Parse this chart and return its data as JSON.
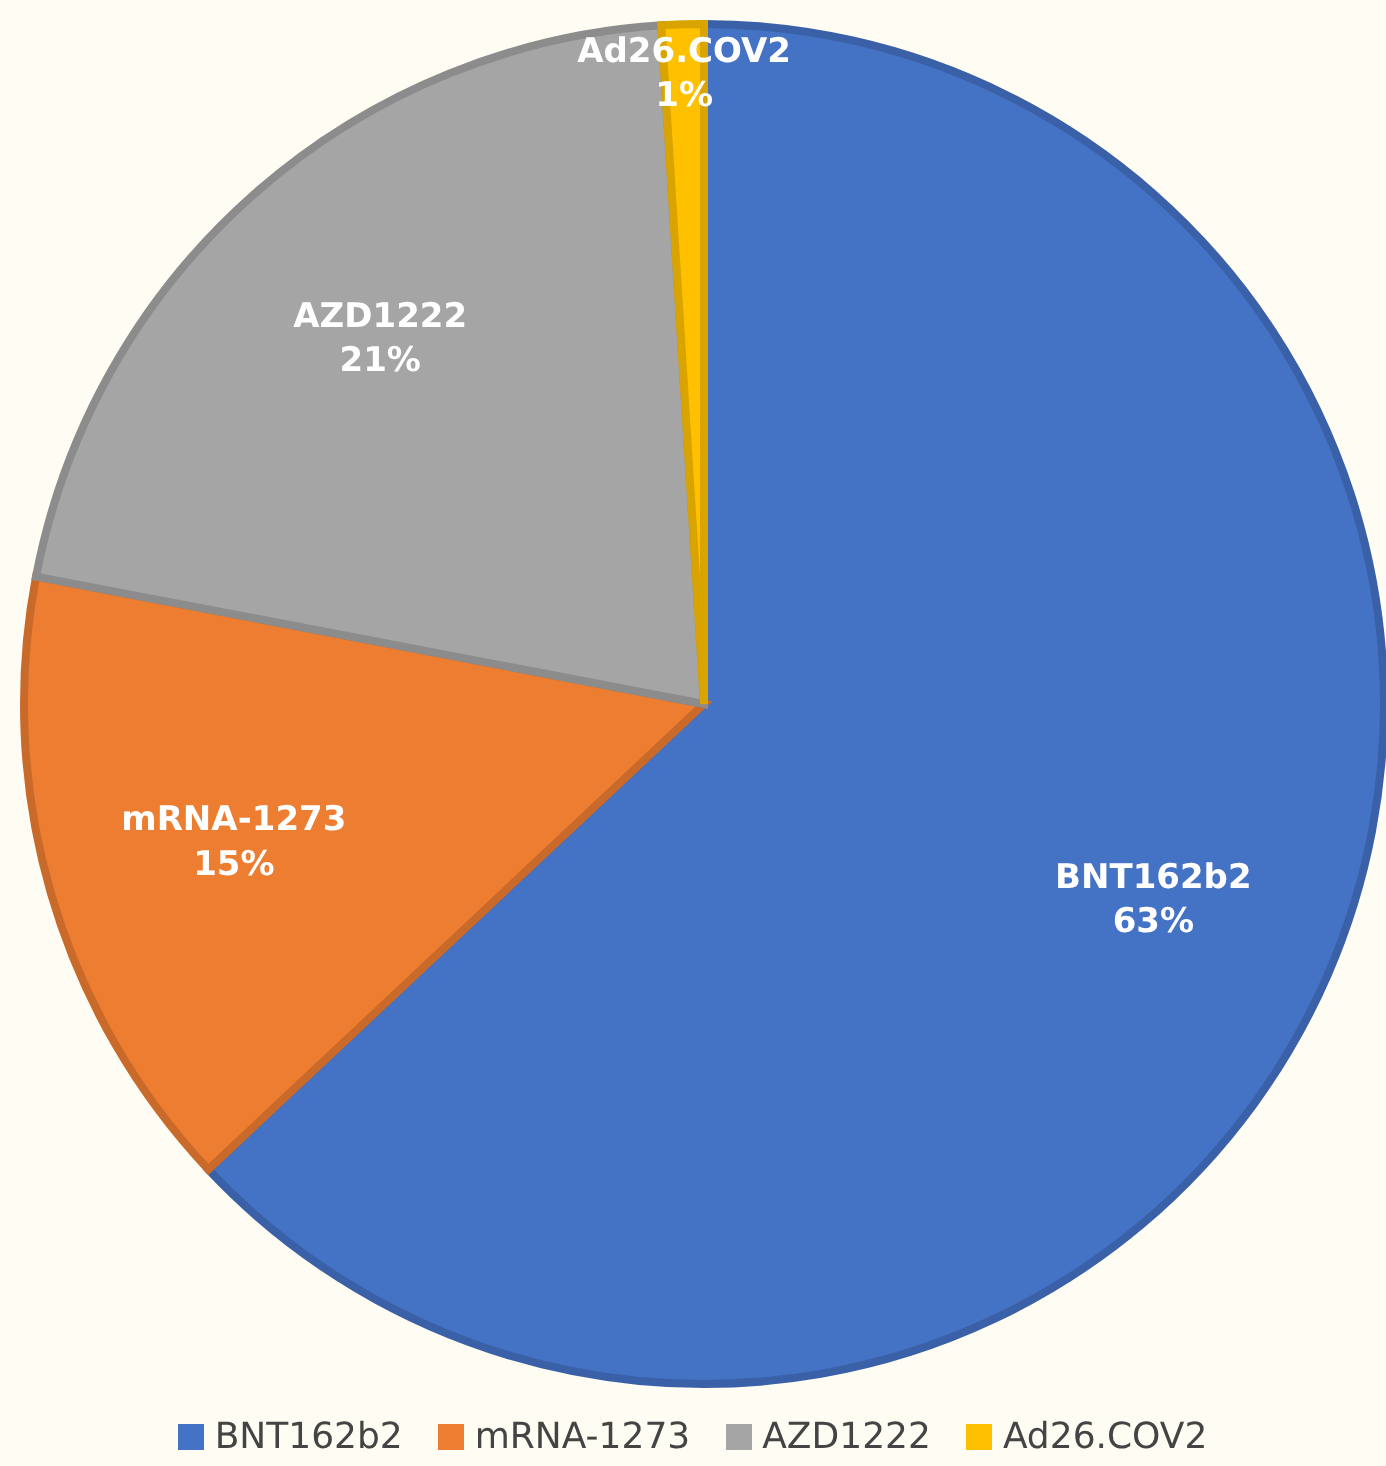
{
  "chart_data": {
    "type": "pie",
    "categories": [
      "BNT162b2",
      "mRNA-1273",
      "AZD1222",
      "Ad26.COV2"
    ],
    "values": [
      63,
      15,
      21,
      1
    ],
    "colors": [
      "#4472c4",
      "#ed7d31",
      "#a5a5a5",
      "#ffc000"
    ],
    "value_labels": [
      "63%",
      "15%",
      "21%",
      "1%"
    ],
    "legend": "bottom"
  }
}
